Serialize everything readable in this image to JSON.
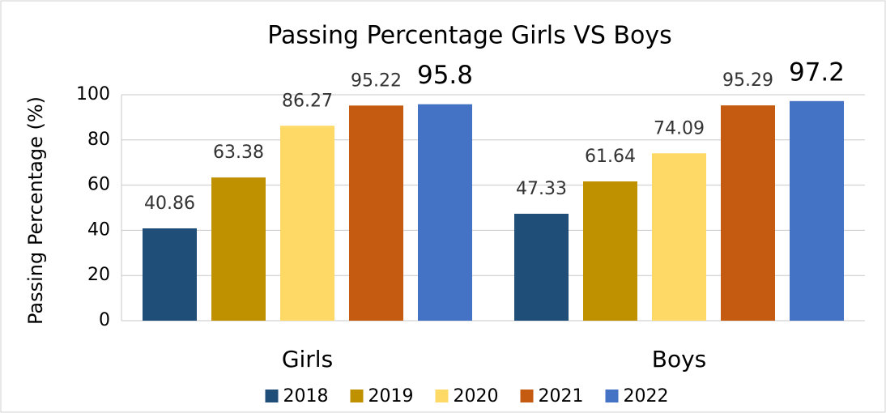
{
  "chart_data": {
    "type": "bar",
    "title": "Passing Percentage Girls VS Boys",
    "y_label": "Passing Percentage (%)",
    "categories": [
      "Girls",
      "Boys"
    ],
    "series": [
      {
        "name": "2018",
        "color": "#1f4e79",
        "values": [
          40.86,
          47.33
        ]
      },
      {
        "name": "2019",
        "color": "#bf9000",
        "values": [
          63.38,
          61.64
        ]
      },
      {
        "name": "2020",
        "color": "#ffd966",
        "values": [
          86.27,
          74.09
        ]
      },
      {
        "name": "2021",
        "color": "#c55a11",
        "values": [
          95.22,
          95.29
        ]
      },
      {
        "name": "2022",
        "color": "#4472c4",
        "values": [
          95.8,
          97.2
        ]
      }
    ],
    "ylim": [
      0,
      100
    ],
    "yticks": [
      0,
      20,
      40,
      60,
      80,
      100
    ],
    "grid": true,
    "legend": "bottom"
  }
}
